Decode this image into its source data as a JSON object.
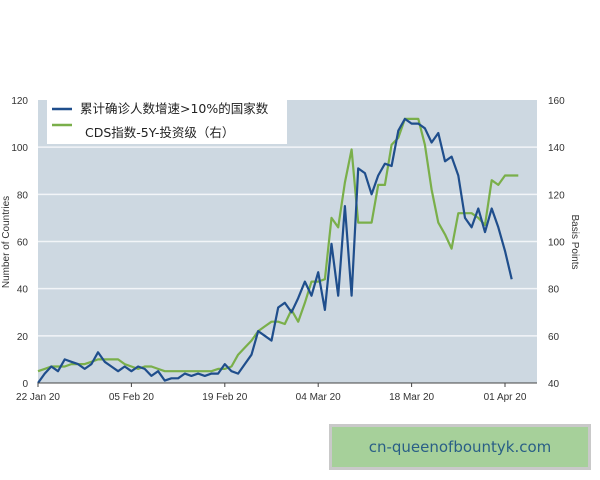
{
  "chart_data": {
    "type": "line",
    "title": "",
    "xlabel": "",
    "ylabel": "Number of Countries",
    "y2label": "Basis Points",
    "ylim": [
      0,
      120
    ],
    "y2lim": [
      40,
      160
    ],
    "yticks": [
      0,
      20,
      40,
      60,
      80,
      100,
      120
    ],
    "y2ticks": [
      40,
      60,
      80,
      100,
      120,
      140,
      160
    ],
    "xtick_labels": [
      "22 Jan 20",
      "05 Feb 20",
      "19 Feb 20",
      "04 Mar 20",
      "18 Mar 20",
      "01 Apr 20"
    ],
    "grid": "horizontal",
    "legend_position": "top-left",
    "colors": {
      "plot_bg": "#cdd8e1",
      "grid": "#f2f5f8",
      "series1": "#1f4e8c",
      "series2": "#7aaf4a"
    },
    "series": [
      {
        "name": "累计确诊人数增速>10%的国家数",
        "axis": "left",
        "values": [
          0,
          4,
          7,
          5,
          10,
          9,
          8,
          6,
          8,
          13,
          9,
          7,
          5,
          7,
          5,
          7,
          6,
          3,
          5,
          1,
          2,
          2,
          4,
          3,
          4,
          3,
          4,
          4,
          8,
          5,
          4,
          8,
          12,
          22,
          20,
          18,
          32,
          34,
          30,
          36,
          43,
          37,
          47,
          31,
          59,
          37,
          75,
          37,
          91,
          89,
          80,
          88,
          93,
          92,
          107,
          112,
          110,
          110,
          108,
          102,
          106,
          94,
          96,
          88,
          70,
          66,
          74,
          64,
          74,
          66,
          56,
          44
        ]
      },
      {
        "name": "CDS指数-5Y-投资级（右）",
        "axis": "right",
        "values": [
          45,
          46,
          47,
          47,
          47,
          48,
          48,
          48,
          49,
          50,
          50,
          50,
          50,
          48,
          47,
          46,
          47,
          47,
          46,
          45,
          45,
          45,
          45,
          45,
          45,
          45,
          45,
          46,
          46,
          47,
          52,
          55,
          58,
          62,
          64,
          66,
          66,
          65,
          71,
          66,
          74,
          83,
          83,
          84,
          110,
          106,
          125,
          139,
          108,
          108,
          108,
          124,
          124,
          141,
          144,
          152,
          152,
          152,
          141,
          122,
          108,
          103,
          97,
          112,
          112,
          112,
          110,
          107,
          126,
          124,
          128,
          128,
          128
        ]
      }
    ]
  },
  "legend": {
    "item1": "累计确诊人数增速>10%的国家数",
    "item2": "CDS指数-5Y-投资级（右）"
  },
  "axes": {
    "left_title": "Number of Countries",
    "right_title": "Basis Points",
    "left_ticks": [
      "0",
      "20",
      "40",
      "60",
      "80",
      "100",
      "120"
    ],
    "right_ticks": [
      "40",
      "60",
      "80",
      "100",
      "120",
      "140",
      "160"
    ],
    "x_ticks": [
      "22 Jan 20",
      "05 Feb 20",
      "19 Feb 20",
      "04 Mar 20",
      "18 Mar 20",
      "01 Apr 20"
    ]
  },
  "watermark": {
    "text": "cn-queenofbountyk.com"
  }
}
